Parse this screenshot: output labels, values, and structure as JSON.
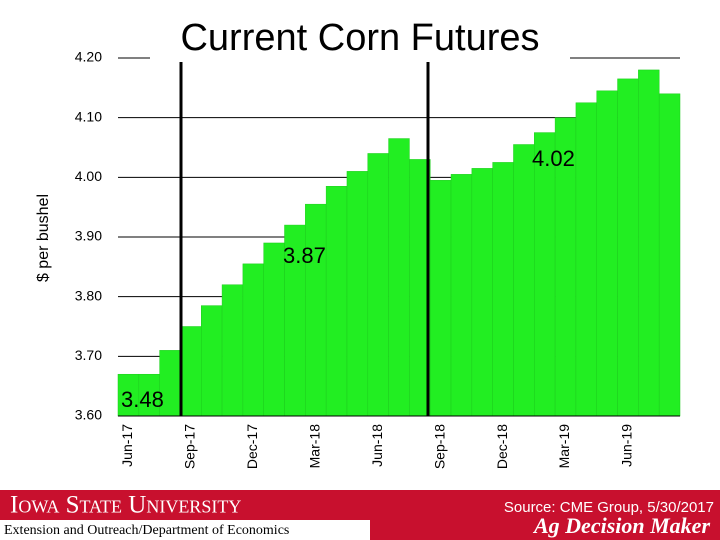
{
  "chart_data": {
    "type": "bar",
    "title": "Current Corn Futures",
    "y_label": "$ per bushel",
    "categories": [
      "Jun-17",
      null,
      null,
      "Sep-17",
      null,
      null,
      "Dec-17",
      null,
      null,
      "Mar-18",
      null,
      null,
      "Jun-18",
      null,
      null,
      "Sep-18",
      null,
      null,
      "Dec-18",
      null,
      null,
      "Mar-19",
      null,
      null,
      "Jun-19",
      null,
      null
    ],
    "values": [
      3.67,
      3.67,
      3.71,
      3.75,
      3.785,
      3.82,
      3.855,
      3.89,
      3.92,
      3.955,
      3.985,
      4.01,
      4.04,
      4.065,
      4.03,
      3.995,
      4.005,
      4.015,
      4.025,
      4.055,
      4.075,
      4.1,
      4.125,
      4.145,
      4.165,
      4.18,
      4.14
    ],
    "color": "#22ee22",
    "ylim": [
      3.6,
      4.2
    ],
    "yticks": [
      {
        "value": 3.6,
        "label": "3.60"
      },
      {
        "value": 3.7,
        "label": "3.70"
      },
      {
        "value": 3.8,
        "label": "3.80"
      },
      {
        "value": 3.9,
        "label": "3.90"
      },
      {
        "value": 4.0,
        "label": "4.00"
      },
      {
        "value": 4.1,
        "label": "4.10"
      },
      {
        "value": 4.2,
        "label": "4.20"
      }
    ],
    "grid": true,
    "annotations": [
      "3.48",
      "3.87",
      "4.02"
    ]
  },
  "footer": {
    "university": "Iowa State University",
    "department": "Extension and Outreach/Department of Economics",
    "source": "Source: CME Group, 5/30/2017",
    "brand": "Ag Decision Maker"
  }
}
